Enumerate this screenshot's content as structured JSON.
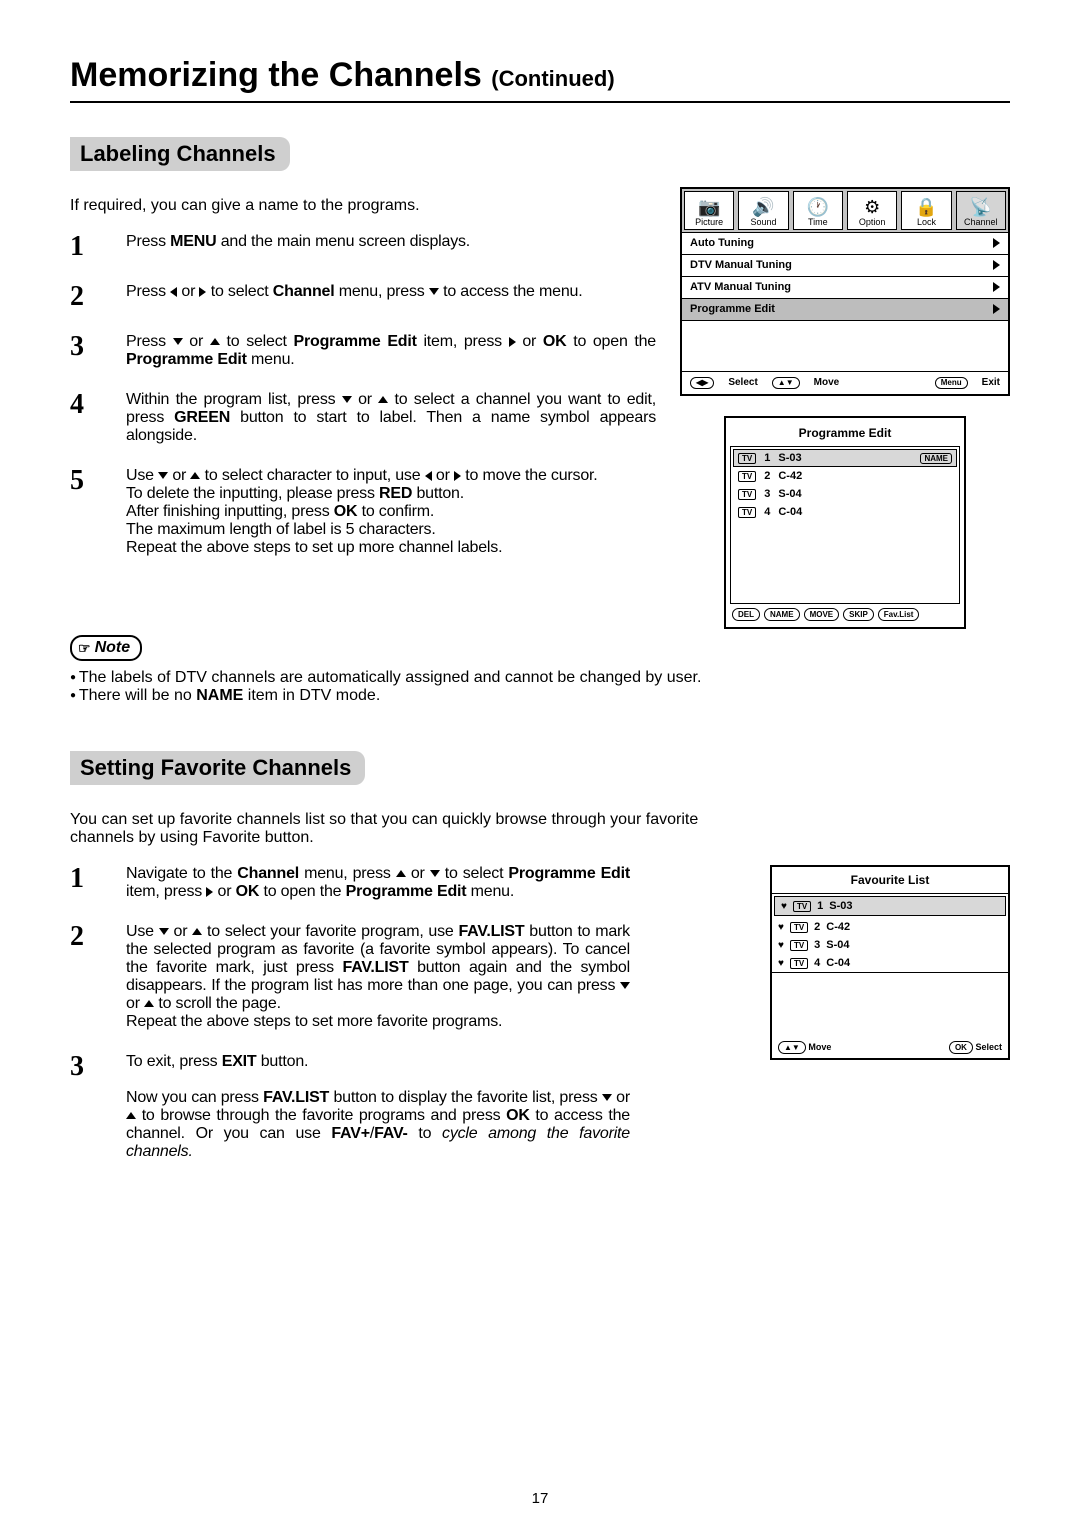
{
  "page_number": "17",
  "title_main": "Memorizing the Channels ",
  "title_cont": "(Continued)",
  "section1": {
    "heading": "Labeling Channels",
    "intro": "If required, you can give a name to the programs.",
    "steps": [
      {
        "n": "1",
        "html": "Press <b>MENU</b> and the main menu screen displays."
      },
      {
        "n": "2",
        "html": "Press <span class='tri tri-l'></span> or <span class='tri tri-r'></span> to select <b>Channel</b> menu,  press <span class='tri-d'></span> to access the menu."
      },
      {
        "n": "3",
        "html": "Press <span class='tri-d'></span> or <span class='tri-u'></span> to select <b>Programme Edit</b> item, press <span class='tri tri-r'></span> or <b>OK</b> to open the <b>Programme Edit</b> menu."
      },
      {
        "n": "4",
        "html": "Within the program list,  press <span class='tri-d'></span> or <span class='tri-u'></span> to select a channel you want to edit, press <b>GREEN</b> button to start to label. Then a name symbol appears alongside."
      },
      {
        "n": "5",
        "html": "Use <span class='tri-d'></span> or <span class='tri-u'></span> to select character to input, use <span class='tri tri-l'></span> or <span class='tri tri-r'></span> to move the cursor.<br>To delete the inputting, please press <b>RED</b> button.<br>After finishing inputting, press <b>OK</b> to confirm.<br>The maximum length of label is 5 characters.<br>Repeat the above steps to set up more channel labels."
      }
    ],
    "note_label": "Note",
    "notes": [
      "The labels of DTV channels are automatically assigned and cannot be changed by user.",
      "There will be no <b>NAME</b> item in DTV mode."
    ]
  },
  "section2": {
    "heading": "Setting Favorite Channels",
    "intro": "You can set up favorite channels list so that you can quickly browse through your favorite channels by using Favorite button.",
    "steps": [
      {
        "n": "1",
        "html": "Navigate to the <b>Channel</b> menu,  press <span class='tri-u'></span> or <span class='tri-d'></span> to select <b>Programme Edit</b> item, press <span class='tri tri-r'></span> or <b>OK</b> to open the <b>Programme Edit</b> menu."
      },
      {
        "n": "2",
        "html": "Use <span class='tri-d'></span> or <span class='tri-u'></span> to select your favorite program, use <b>FAV.LIST</b> button to mark the selected program as favorite (a favorite symbol appears).  To cancel the favorite mark, just press <b>FAV.LIST</b> button again and the symbol disappears. If the program list has more than one page, you can press <span class='tri-d'></span> or <span class='tri-u'></span> to scroll the page.<br>Repeat the above steps to set more favorite programs."
      },
      {
        "n": "3",
        "html": "To exit, press <b>EXIT</b> button.<br><br>Now you can press <b>FAV.LIST</b> button to display the favorite list, press <span class='tri-d'></span> or <span class='tri-u'></span> to browse through the favorite programs and press <b>OK</b> to access the channel. Or you can use <b>FAV+</b>/<b>FAV-</b> to <span class='italic'>cycle among the favorite channels.</span>"
      }
    ]
  },
  "osd": {
    "tabs": [
      {
        "label": "Picture",
        "icon": "📷"
      },
      {
        "label": "Sound",
        "icon": "🔊"
      },
      {
        "label": "Time",
        "icon": "🕐"
      },
      {
        "label": "Option",
        "icon": "⚙"
      },
      {
        "label": "Lock",
        "icon": "🔒"
      },
      {
        "label": "Channel",
        "icon": "📡",
        "sel": true
      }
    ],
    "rows": [
      {
        "label": "Auto Tuning"
      },
      {
        "label": "DTV Manual Tuning"
      },
      {
        "label": "ATV Manual Tuning"
      },
      {
        "label": "Programme Edit",
        "sel": true
      }
    ],
    "footer": {
      "select_key": "◀▶",
      "select": "Select",
      "move_key": "▲▼",
      "move": "Move",
      "menu_key": "Menu",
      "exit": "Exit"
    }
  },
  "prog_edit": {
    "title": "Programme Edit",
    "rows": [
      {
        "n": "1",
        "ch": "S-03",
        "sel": true,
        "name_tag": "NAME"
      },
      {
        "n": "2",
        "ch": "C-42"
      },
      {
        "n": "3",
        "ch": "S-04"
      },
      {
        "n": "4",
        "ch": "C-04"
      }
    ],
    "buttons": [
      "DEL",
      "NAME",
      "MOVE",
      "SKIP",
      "Fav.List"
    ]
  },
  "fav_list": {
    "title": "Favourite  List",
    "rows": [
      {
        "n": "1",
        "ch": "S-03",
        "sel": true
      },
      {
        "n": "2",
        "ch": "C-42"
      },
      {
        "n": "3",
        "ch": "S-04"
      },
      {
        "n": "4",
        "ch": "C-04"
      }
    ],
    "move_key": "▲▼",
    "move": "Move",
    "sel_key": "OK",
    "select": "Select"
  }
}
